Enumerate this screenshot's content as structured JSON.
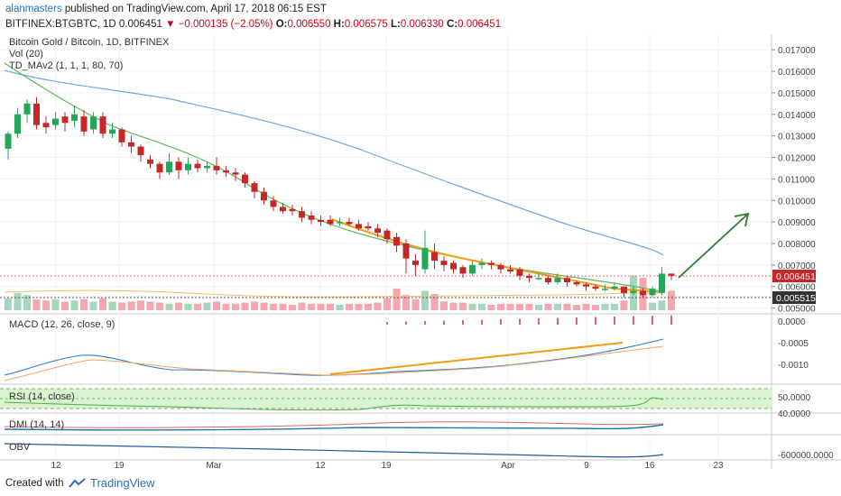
{
  "header": {
    "author": "alanmasters",
    "published_text": "published on TradingView.com, April 17, 2018 06:15 EST",
    "symbol": "BITFINEX:BTGBTC, 1D",
    "last": "0.006451",
    "change": "−0.000135 (−2.05%)",
    "ohlc": {
      "o_label": "O:",
      "o": "0.006550",
      "h_label": "H:",
      "h": "0.006575",
      "l_label": "L:",
      "l": "0.006330",
      "c_label": "C:",
      "c": "0.006451"
    }
  },
  "legend": {
    "title": "Bitcoin Gold / Bitcoin, 1D, BITFINEX",
    "vol": "Vol (20)",
    "td": "TD_MAv2 (1, 1, 1, 80, 70)"
  },
  "panes": {
    "macd": "MACD (12, 26, close, 9)",
    "rsi": "RSI (14, close)",
    "dmi": "DMI (14, 14)",
    "obv": "OBV"
  },
  "price_axis": {
    "ticks": [
      "0.017000",
      "0.016000",
      "0.015000",
      "0.014000",
      "0.013000",
      "0.012000",
      "0.011000",
      "0.010000",
      "0.009000",
      "0.008000",
      "0.007000",
      "0.006000",
      "0.005000"
    ],
    "last_price_label": "0.006451",
    "support_label": "0.005515"
  },
  "macd_axis": {
    "ticks": [
      "0.0000",
      "-0.0005",
      "-0.0010"
    ]
  },
  "rsi_axis": {
    "ticks": [
      "50.0000"
    ]
  },
  "dmi_axis": {
    "ticks": [
      "40.0000"
    ]
  },
  "obv_axis": {
    "ticks": [
      "-600000.0000"
    ]
  },
  "time_axis": {
    "labels": [
      "12",
      "19",
      "Mar",
      "12",
      "19",
      "Apr",
      "9",
      "16",
      "23"
    ]
  },
  "footer": {
    "created": "Created with",
    "brand": "TradingView"
  },
  "colors": {
    "up": "#26a65b",
    "down": "#c62828",
    "ma_blue": "#6fa8dc",
    "ma_green": "#4caf50",
    "trend_orange": "#f39c12",
    "arrow": "#2e7d32",
    "vol_up": "#a5d6c1",
    "vol_down": "#f4a7b1"
  },
  "chart_data": {
    "type": "candlestick",
    "x_unit": "day index",
    "candles": [
      [
        0.0124,
        0.0131,
        0.0119,
        0.0132
      ],
      [
        0.0131,
        0.014,
        0.0129,
        0.0143
      ],
      [
        0.014,
        0.0145,
        0.0136,
        0.0147
      ],
      [
        0.0145,
        0.0135,
        0.0133,
        0.0148
      ],
      [
        0.0136,
        0.0134,
        0.0131,
        0.0139
      ],
      [
        0.0135,
        0.0138,
        0.0133,
        0.0141
      ],
      [
        0.0139,
        0.0136,
        0.0132,
        0.0141
      ],
      [
        0.0137,
        0.014,
        0.0134,
        0.0144
      ],
      [
        0.0139,
        0.0132,
        0.013,
        0.0142
      ],
      [
        0.0133,
        0.0139,
        0.0131,
        0.0141
      ],
      [
        0.0139,
        0.0131,
        0.0129,
        0.0141
      ],
      [
        0.0131,
        0.0133,
        0.0129,
        0.0136
      ],
      [
        0.0133,
        0.0127,
        0.0125,
        0.0134
      ],
      [
        0.0127,
        0.0125,
        0.0122,
        0.013
      ],
      [
        0.0125,
        0.0121,
        0.0118,
        0.0126
      ],
      [
        0.0119,
        0.0117,
        0.0115,
        0.0121
      ],
      [
        0.0117,
        0.0113,
        0.011,
        0.0118
      ],
      [
        0.0113,
        0.0118,
        0.0112,
        0.0122
      ],
      [
        0.0118,
        0.0114,
        0.011,
        0.012
      ],
      [
        0.0114,
        0.0117,
        0.0112,
        0.012
      ],
      [
        0.0117,
        0.0115,
        0.0113,
        0.0119
      ],
      [
        0.0115,
        0.0116,
        0.0113,
        0.0118
      ],
      [
        0.0116,
        0.0114,
        0.0112,
        0.012
      ],
      [
        0.0114,
        0.0113,
        0.0111,
        0.0116
      ],
      [
        0.0113,
        0.0112,
        0.0109,
        0.0115
      ],
      [
        0.0112,
        0.0108,
        0.0106,
        0.0113
      ],
      [
        0.0108,
        0.0104,
        0.0101,
        0.0109
      ],
      [
        0.0104,
        0.01,
        0.0098,
        0.0106
      ],
      [
        0.01,
        0.0097,
        0.0095,
        0.0102
      ],
      [
        0.0097,
        0.0095,
        0.0094,
        0.0099
      ],
      [
        0.0096,
        0.0095,
        0.0093,
        0.0098
      ],
      [
        0.0095,
        0.0092,
        0.009,
        0.0097
      ],
      [
        0.0093,
        0.0091,
        0.0089,
        0.0095
      ],
      [
        0.0091,
        0.009,
        0.0088,
        0.0093
      ],
      [
        0.0091,
        0.0089,
        0.0088,
        0.0093
      ],
      [
        0.009,
        0.009,
        0.0088,
        0.0092
      ],
      [
        0.009,
        0.0089,
        0.0088,
        0.0092
      ],
      [
        0.0089,
        0.0087,
        0.0086,
        0.0091
      ],
      [
        0.0088,
        0.0087,
        0.0086,
        0.009
      ],
      [
        0.0087,
        0.0085,
        0.0083,
        0.0089
      ],
      [
        0.0086,
        0.0082,
        0.008,
        0.0087
      ],
      [
        0.0083,
        0.0079,
        0.0076,
        0.0085
      ],
      [
        0.008,
        0.0073,
        0.0066,
        0.0082
      ],
      [
        0.0072,
        0.007,
        0.0065,
        0.0075
      ],
      [
        0.0068,
        0.0078,
        0.0066,
        0.0086
      ],
      [
        0.0076,
        0.0072,
        0.0068,
        0.008
      ],
      [
        0.0072,
        0.007,
        0.0067,
        0.0074
      ],
      [
        0.0071,
        0.0068,
        0.0066,
        0.0072
      ],
      [
        0.0069,
        0.0066,
        0.0064,
        0.007
      ],
      [
        0.0066,
        0.007,
        0.0065,
        0.0072
      ],
      [
        0.007,
        0.0071,
        0.0068,
        0.0073
      ],
      [
        0.0071,
        0.007,
        0.0068,
        0.0072
      ],
      [
        0.007,
        0.0068,
        0.0066,
        0.0071
      ],
      [
        0.0068,
        0.0067,
        0.0066,
        0.007
      ],
      [
        0.0068,
        0.0065,
        0.0063,
        0.0069
      ],
      [
        0.0065,
        0.0064,
        0.0062,
        0.0066
      ],
      [
        0.0064,
        0.0064,
        0.0063,
        0.0066
      ],
      [
        0.0064,
        0.0062,
        0.0061,
        0.0065
      ],
      [
        0.0062,
        0.0064,
        0.0061,
        0.0066
      ],
      [
        0.0064,
        0.0062,
        0.006,
        0.0065
      ],
      [
        0.0062,
        0.0061,
        0.006,
        0.0063
      ],
      [
        0.0061,
        0.006,
        0.0058,
        0.0062
      ],
      [
        0.006,
        0.0059,
        0.0058,
        0.0061
      ],
      [
        0.0059,
        0.0059,
        0.0058,
        0.0061
      ],
      [
        0.0059,
        0.006,
        0.0058,
        0.0062
      ],
      [
        0.006,
        0.0057,
        0.0055,
        0.006
      ],
      [
        0.0057,
        0.0058,
        0.0056,
        0.006
      ],
      [
        0.0058,
        0.0056,
        0.0055,
        0.0059
      ],
      [
        0.0056,
        0.0059,
        0.0055,
        0.006
      ],
      [
        0.0057,
        0.0066,
        0.0056,
        0.0069
      ],
      [
        0.0066,
        0.0065,
        0.0063,
        0.0066
      ]
    ],
    "volume_relative": [
      0.55,
      0.8,
      0.7,
      0.5,
      0.45,
      0.5,
      0.4,
      0.45,
      0.5,
      0.4,
      0.55,
      0.4,
      0.35,
      0.4,
      0.45,
      0.4,
      0.35,
      0.3,
      0.35,
      0.3,
      0.3,
      0.35,
      0.4,
      0.3,
      0.3,
      0.35,
      0.4,
      0.35,
      0.3,
      0.3,
      0.25,
      0.35,
      0.3,
      0.3,
      0.3,
      0.25,
      0.3,
      0.3,
      0.3,
      0.35,
      0.55,
      1.0,
      0.7,
      0.5,
      0.9,
      0.75,
      0.4,
      0.35,
      0.35,
      0.3,
      0.3,
      0.25,
      0.3,
      0.3,
      0.3,
      0.3,
      0.25,
      0.3,
      0.3,
      0.3,
      0.25,
      0.3,
      0.25,
      0.3,
      0.3,
      0.45,
      1.6,
      1.5,
      0.35,
      0.45,
      0.9
    ],
    "ylim": [
      0.0049,
      0.0173
    ],
    "levels": {
      "last": 0.006451,
      "support": 0.005515
    }
  }
}
